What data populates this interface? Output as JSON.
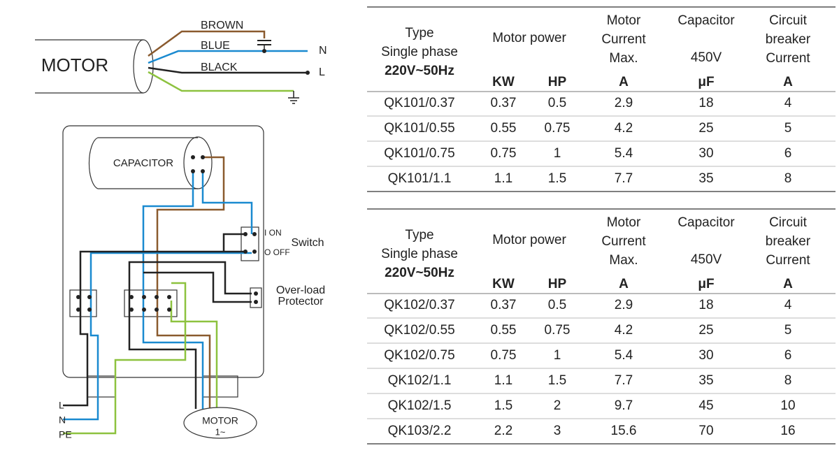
{
  "diagram_top": {
    "motor": "MOTOR",
    "wires": [
      "BROWN",
      "BLUE",
      "BLACK"
    ],
    "terminals": [
      "N",
      "L"
    ]
  },
  "diagram_box": {
    "capacitor": "CAPACITOR",
    "switch_on": "I ON",
    "switch_off": "O OFF",
    "switch": "Switch",
    "overload": [
      "Over-load",
      "Protector"
    ],
    "leads": [
      "L",
      "N",
      "PE"
    ],
    "motor": [
      "MOTOR",
      "1~"
    ]
  },
  "tables": [
    {
      "header": {
        "type": [
          "Type",
          "Single phase",
          "220V~50Hz"
        ],
        "motor_power": "Motor power",
        "motor_current": [
          "Motor",
          "Current",
          "Max."
        ],
        "capacitor": [
          "Capacitor",
          "450V"
        ],
        "breaker": [
          "Circuit",
          "breaker",
          "Current"
        ],
        "units": [
          "KW",
          "HP",
          "A",
          "μF",
          "A"
        ]
      },
      "rows": [
        [
          "QK101/0.37",
          0.37,
          0.5,
          2.9,
          18,
          4
        ],
        [
          "QK101/0.55",
          0.55,
          0.75,
          4.2,
          25,
          5
        ],
        [
          "QK101/0.75",
          0.75,
          1,
          5.4,
          30,
          6
        ],
        [
          "QK101/1.1",
          1.1,
          1.5,
          7.7,
          35,
          8
        ]
      ]
    },
    {
      "header": {
        "type": [
          "Type",
          "Single phase",
          "220V~50Hz"
        ],
        "motor_power": "Motor power",
        "motor_current": [
          "Motor",
          "Current",
          "Max."
        ],
        "capacitor": [
          "Capacitor",
          "450V"
        ],
        "breaker": [
          "Circuit",
          "breaker",
          "Current"
        ],
        "units": [
          "KW",
          "HP",
          "A",
          "μF",
          "A"
        ]
      },
      "rows": [
        [
          "QK102/0.37",
          0.37,
          0.5,
          2.9,
          18,
          4
        ],
        [
          "QK102/0.55",
          0.55,
          0.75,
          4.2,
          25,
          5
        ],
        [
          "QK102/0.75",
          0.75,
          1,
          5.4,
          30,
          6
        ],
        [
          "QK102/1.1",
          1.1,
          1.5,
          7.7,
          35,
          8
        ],
        [
          "QK102/1.5",
          1.5,
          2,
          9.7,
          45,
          10
        ],
        [
          "QK103/2.2",
          2.2,
          3,
          15.6,
          70,
          16
        ]
      ]
    }
  ]
}
